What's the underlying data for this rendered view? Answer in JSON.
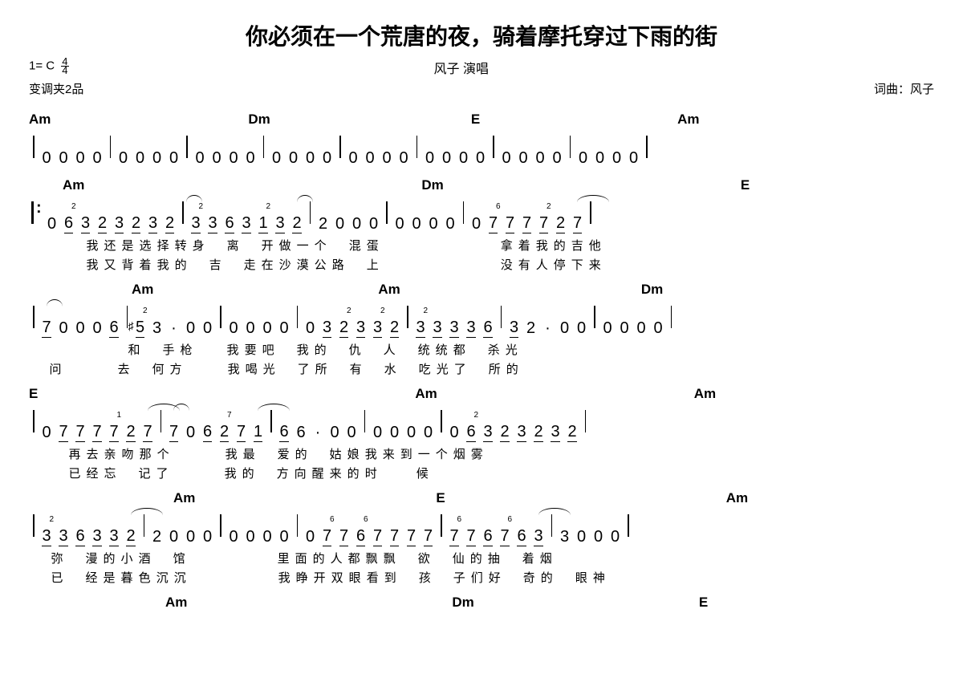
{
  "title": "你必须在一个荒唐的夜，骑着摩托穿过下雨的街",
  "key_sig": "1= C",
  "time_sig_top": "4",
  "time_sig_bot": "4",
  "performer": "风子  演唱",
  "capo": "变调夹2品",
  "composer": "词曲：风子",
  "system1": {
    "chords": [
      {
        "label": "Am",
        "pad": 0
      },
      {
        "label": "Dm",
        "pad": 246
      },
      {
        "label": "E",
        "pad": 250
      },
      {
        "label": "Am",
        "pad": 246
      }
    ],
    "bars": [
      [
        "0",
        "0",
        "0",
        "0"
      ],
      [
        "0",
        "0",
        "0",
        "0"
      ],
      [
        "0",
        "0",
        "0",
        "0"
      ],
      [
        "0",
        "0",
        "0",
        "0"
      ],
      [
        "0",
        "0",
        "0",
        "0"
      ],
      [
        "0",
        "0",
        "0",
        "0"
      ],
      [
        "0",
        "0",
        "0",
        "0"
      ],
      [
        "0",
        "0",
        "0",
        "0"
      ]
    ]
  },
  "system2": {
    "chords": [
      {
        "label": "Am",
        "pad": 42
      },
      {
        "label": "Dm",
        "pad": 420
      },
      {
        "label": "E",
        "pad": 370
      }
    ],
    "bars": [
      {
        "repeat": true,
        "n": [
          "0",
          "6",
          "3",
          "2",
          "3",
          "2",
          "3",
          "2"
        ],
        "ub": [
          0,
          1,
          1,
          1,
          1,
          1,
          1,
          1
        ],
        "fing": {
          "1": "2"
        },
        "slur": [
          [
            7,
            8
          ]
        ]
      },
      {
        "n": [
          "3",
          "3",
          "6",
          "3",
          "1",
          "3",
          "2"
        ],
        "ub": [
          1,
          1,
          1,
          1,
          1,
          1,
          1
        ],
        "fing": {
          "0": "2",
          "4": "2"
        },
        "slur": [
          [
            5,
            6
          ]
        ]
      },
      {
        "n": [
          "2",
          "0",
          "0",
          "0"
        ],
        "ub": [
          0,
          0,
          0,
          0
        ]
      },
      {
        "n": [
          "0",
          "0",
          "0",
          "0"
        ],
        "ub": [
          0,
          0,
          0,
          0
        ]
      },
      {
        "n": [
          "0",
          "7",
          "7",
          "7",
          "7",
          "2",
          "7"
        ],
        "ub": [
          0,
          1,
          1,
          1,
          1,
          1,
          1
        ],
        "fing": {
          "1": "6",
          "4": "2"
        },
        "slur": [
          [
            5,
            7
          ]
        ]
      }
    ],
    "ly1_gap": 68,
    "ly1": "我还是选择转身　离 开做一个 混蛋",
    "ly1b_gap": 570,
    "ly1b": "拿着我的吉他",
    "ly2_gap": 68,
    "ly2": "我又背着我的　吉 走在沙漠公路　上",
    "ly2b_gap": 570,
    "ly2b": "没有人停下来"
  },
  "system3": {
    "chords": [
      {
        "label": "Am",
        "pad": 128
      },
      {
        "label": "Am",
        "pad": 280
      },
      {
        "label": "Dm",
        "pad": 300
      }
    ],
    "bars": [
      {
        "n": [
          "7",
          "0",
          "0",
          "0",
          "6"
        ],
        "ub": [
          1,
          0,
          0,
          0,
          1
        ],
        "slur": [
          [
            -1,
            0
          ]
        ]
      },
      {
        "n": [
          "5",
          "3",
          "·",
          "0",
          "0"
        ],
        "ub": [
          1,
          0,
          0,
          0,
          0
        ],
        "sharp": {
          "0": true
        },
        "fing": {
          "0": "2"
        }
      },
      {
        "n": [
          "0",
          "0",
          "0",
          "0"
        ],
        "ub": [
          0,
          0,
          0,
          0
        ]
      },
      {
        "n": [
          "0",
          "3",
          "2",
          "3",
          "3",
          "2"
        ],
        "ub": [
          0,
          1,
          1,
          1,
          1,
          1
        ],
        "fing": {
          "2": "2",
          "4": "2"
        }
      },
      {
        "n": [
          "3",
          "3",
          "3",
          "3",
          "6"
        ],
        "ub": [
          1,
          1,
          1,
          1,
          1
        ],
        "fing": {
          "0": "2"
        }
      },
      {
        "n": [
          "3",
          "2",
          "·",
          "0",
          "0"
        ],
        "ub": [
          1,
          0,
          0,
          0,
          0
        ]
      },
      {
        "n": [
          "0",
          "0",
          "0",
          "0"
        ],
        "ub": [
          0,
          0,
          0,
          0
        ]
      }
    ],
    "ly1_gap": 120,
    "ly1": "和　手枪",
    "ly1b_gap": 240,
    "ly1b": "我要吧 我的　仇 人　统统都　杀光",
    "ly2_gap": 22,
    "ly2": "问　　　去　何方",
    "ly2b_gap": 240,
    "ly2b": "我喝光 了所　有 水　吃光了　所的"
  },
  "system4": {
    "chords": [
      {
        "label": "E",
        "pad": 0
      },
      {
        "label": "Am",
        "pad": 470
      },
      {
        "label": "Am",
        "pad": 320
      }
    ],
    "bars": [
      {
        "n": [
          "0",
          "7",
          "7",
          "7",
          "7",
          "2",
          "7"
        ],
        "ub": [
          0,
          1,
          1,
          1,
          1,
          1,
          1
        ],
        "fing": {
          "4": "1"
        },
        "slur": [
          [
            5,
            7
          ]
        ]
      },
      {
        "n": [
          "7",
          "0",
          "6",
          "2",
          "7",
          "1"
        ],
        "ub": [
          1,
          0,
          1,
          1,
          1,
          1
        ],
        "fing": {
          "3": "7"
        },
        "slur": [
          [
            -1,
            0
          ],
          [
            4,
            6
          ]
        ]
      },
      {
        "n": [
          "6",
          "6",
          "·",
          "0",
          "0"
        ],
        "ub": [
          1,
          0,
          0,
          0,
          0
        ]
      },
      {
        "n": [
          "0",
          "0",
          "0",
          "0"
        ],
        "ub": [
          0,
          0,
          0,
          0
        ]
      },
      {
        "n": [
          "0",
          "6",
          "3",
          "2",
          "3",
          "2",
          "3",
          "2"
        ],
        "ub": [
          0,
          1,
          1,
          1,
          1,
          1,
          1,
          1
        ],
        "fing": {
          "1": "2"
        }
      }
    ],
    "ly1_gap": 46,
    "ly1": "再去亲吻那个　　　我最 爱的　姑娘",
    "ly1b_gap": 340,
    "ly1b": "我来到一个烟雾",
    "ly2_gap": 46,
    "ly2": "已经忘　记了　　　我的 方向",
    "ly2b_gap": 340,
    "ly2b": "醒来的时　　候"
  },
  "system5": {
    "chords": [
      {
        "label": "Am",
        "pad": 180
      },
      {
        "label": "E",
        "pad": 300
      },
      {
        "label": "Am",
        "pad": 350
      }
    ],
    "bars": [
      {
        "n": [
          "3",
          "3",
          "6",
          "3",
          "3",
          "2"
        ],
        "ub": [
          1,
          1,
          1,
          1,
          1,
          1
        ],
        "fing": {
          "0": "2"
        },
        "slur": [
          [
            4,
            6
          ]
        ]
      },
      {
        "n": [
          "2",
          "0",
          "0",
          "0"
        ],
        "ub": [
          0,
          0,
          0,
          0
        ]
      },
      {
        "n": [
          "0",
          "0",
          "0",
          "0"
        ],
        "ub": [
          0,
          0,
          0,
          0
        ]
      },
      {
        "n": [
          "0",
          "7",
          "7",
          "6",
          "7",
          "7",
          "7",
          "7"
        ],
        "ub": [
          0,
          1,
          1,
          1,
          1,
          1,
          1,
          1
        ],
        "fing": {
          "1": "6",
          "3": "6"
        }
      },
      {
        "n": [
          "7",
          "7",
          "6",
          "7",
          "6",
          "3"
        ],
        "ub": [
          1,
          1,
          1,
          1,
          1,
          1
        ],
        "fing": {
          "0": "6",
          "3": "6"
        },
        "slur": [
          [
            4,
            6
          ]
        ]
      },
      {
        "n": [
          "3",
          "0",
          "0",
          "0"
        ],
        "ub": [
          0,
          0,
          0,
          0
        ]
      }
    ],
    "ly1_gap": 24,
    "ly1": "弥 漫的小酒　馆",
    "ly1b_gap": 300,
    "ly1b": "里面的人都飘飘　欲 仙的抽 着烟",
    "ly2_gap": 24,
    "ly2": "已 经是暮色沉沉",
    "ly2b_gap": 300,
    "ly2b": "我睁开双眼看到　孩 子们好 奇的　眼神"
  },
  "system6": {
    "chords": [
      {
        "label": "Am",
        "pad": 170
      },
      {
        "label": "Dm",
        "pad": 330
      },
      {
        "label": "E",
        "pad": 280
      }
    ]
  },
  "colors": {
    "text": "#000000",
    "bg": "#ffffff"
  }
}
